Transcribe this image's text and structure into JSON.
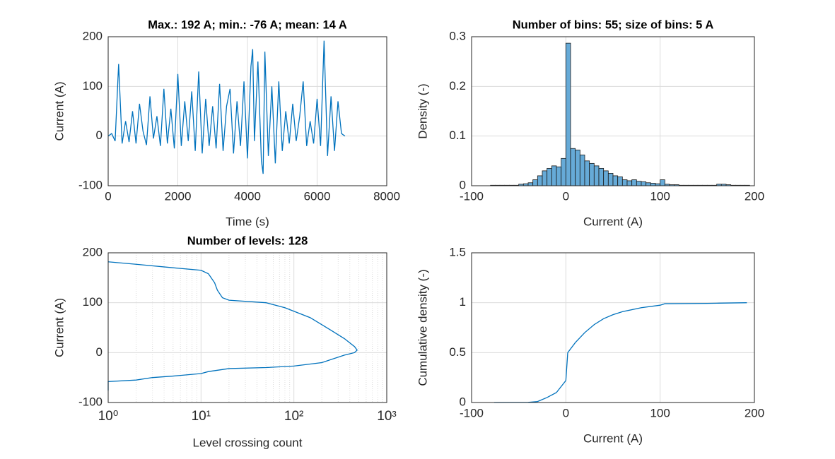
{
  "chart_data": [
    {
      "type": "line",
      "title": "Max.: 192 A; min.: -76 A; mean: 14 A",
      "x_label": "Time (s)",
      "y_label": "Current (A)",
      "color": "#0072BD",
      "grid": true,
      "xlim": [
        0,
        8000
      ],
      "xticks": [
        0,
        2000,
        4000,
        6000,
        8000
      ],
      "ylim": [
        -100,
        200
      ],
      "yticks": [
        -100,
        0,
        100,
        200
      ],
      "x": [
        0,
        100,
        200,
        300,
        400,
        500,
        600,
        700,
        800,
        900,
        1000,
        1100,
        1200,
        1300,
        1400,
        1500,
        1600,
        1700,
        1800,
        1900,
        2000,
        2100,
        2200,
        2300,
        2400,
        2500,
        2600,
        2700,
        2800,
        2900,
        3000,
        3100,
        3200,
        3300,
        3400,
        3500,
        3600,
        3700,
        3800,
        3900,
        4000,
        4100,
        4150,
        4200,
        4300,
        4400,
        4450,
        4500,
        4600,
        4700,
        4800,
        4900,
        5000,
        5100,
        5200,
        5300,
        5400,
        5500,
        5600,
        5700,
        5800,
        5900,
        6000,
        6100,
        6200,
        6300,
        6400,
        6500,
        6600,
        6700,
        6800
      ],
      "values": [
        0,
        5,
        -10,
        145,
        -15,
        30,
        -12,
        50,
        -15,
        65,
        10,
        -18,
        80,
        -5,
        40,
        -20,
        95,
        -15,
        55,
        -25,
        125,
        -20,
        70,
        -10,
        90,
        -30,
        130,
        -35,
        75,
        -20,
        60,
        -25,
        105,
        -30,
        60,
        95,
        -35,
        70,
        -20,
        110,
        -45,
        140,
        175,
        -10,
        150,
        -50,
        -76,
        170,
        -40,
        100,
        -55,
        110,
        -30,
        50,
        -15,
        65,
        -10,
        40,
        110,
        -20,
        30,
        -15,
        75,
        -20,
        192,
        -40,
        80,
        -30,
        70,
        5,
        0
      ]
    },
    {
      "type": "histogram",
      "title": "Number of bins: 55; size of bins: 5 A",
      "x_label": "Current (A)",
      "y_label": "Density (-)",
      "color": "#66aad7",
      "grid": true,
      "xlim": [
        -100,
        200
      ],
      "xticks": [
        -100,
        0,
        100,
        200
      ],
      "ylim": [
        0,
        0.3
      ],
      "yticks": [
        0,
        0.1,
        0.2,
        0.3
      ],
      "bins": [
        -80,
        -75,
        -70,
        -65,
        -60,
        -55,
        -50,
        -45,
        -40,
        -35,
        -30,
        -25,
        -20,
        -15,
        -10,
        -5,
        0,
        5,
        10,
        15,
        20,
        25,
        30,
        35,
        40,
        45,
        50,
        55,
        60,
        65,
        70,
        75,
        80,
        85,
        90,
        95,
        100,
        105,
        110,
        115,
        120,
        125,
        130,
        135,
        140,
        145,
        150,
        155,
        160,
        165,
        170,
        175,
        180,
        185,
        190,
        195
      ],
      "values": [
        0.001,
        0.001,
        0.001,
        0.001,
        0.001,
        0.001,
        0.003,
        0.004,
        0.006,
        0.012,
        0.02,
        0.03,
        0.035,
        0.04,
        0.038,
        0.055,
        0.287,
        0.075,
        0.072,
        0.062,
        0.05,
        0.045,
        0.04,
        0.035,
        0.03,
        0.025,
        0.02,
        0.018,
        0.012,
        0.01,
        0.012,
        0.009,
        0.008,
        0.006,
        0.005,
        0.004,
        0.012,
        0.003,
        0.002,
        0.002,
        0.001,
        0.001,
        0.001,
        0.001,
        0.001,
        0.001,
        0.001,
        0.001,
        0.003,
        0.003,
        0.002,
        0.001,
        0.001,
        0.001,
        0.001
      ]
    },
    {
      "type": "line",
      "title": "Number of levels: 128",
      "x_label": "Level crossing count",
      "y_label": "Current (A)",
      "color": "#0072BD",
      "grid": true,
      "xscale": "log",
      "xlim": [
        1,
        1000
      ],
      "xticks": [
        {
          "value": 1,
          "label": "10⁰"
        },
        {
          "value": 10,
          "label": "10¹"
        },
        {
          "value": 100,
          "label": "10²"
        },
        {
          "value": 1000,
          "label": "10³"
        }
      ],
      "xminorticks": [
        2,
        3,
        4,
        5,
        6,
        7,
        8,
        9,
        20,
        30,
        40,
        50,
        60,
        70,
        80,
        90,
        200,
        300,
        400,
        500,
        600,
        700,
        800,
        900
      ],
      "ylim": [
        -100,
        200
      ],
      "yticks": [
        -100,
        0,
        100,
        200
      ],
      "x": [
        1,
        2,
        5,
        10,
        12,
        14,
        15,
        17,
        20,
        50,
        80,
        150,
        250,
        350,
        450,
        480,
        450,
        350,
        200,
        100,
        50,
        20,
        12,
        10,
        5,
        3,
        2,
        1,
        1
      ],
      "values": [
        182,
        177,
        170,
        165,
        158,
        140,
        125,
        110,
        105,
        100,
        90,
        70,
        45,
        28,
        12,
        5,
        0,
        -5,
        -20,
        -27,
        -30,
        -32,
        -38,
        -42,
        -47,
        -50,
        -55,
        -58,
        -76
      ]
    },
    {
      "type": "line",
      "x_label": "Current (A)",
      "y_label": "Cumulative density (-)",
      "color": "#0072BD",
      "grid": true,
      "xlim": [
        -100,
        200
      ],
      "xticks": [
        -100,
        0,
        100,
        200
      ],
      "ylim": [
        0,
        1.5
      ],
      "yticks": [
        0,
        0.5,
        1,
        1.5
      ],
      "x": [
        -76,
        -40,
        -30,
        -20,
        -10,
        0,
        2,
        10,
        20,
        30,
        40,
        50,
        60,
        80,
        100,
        105,
        150,
        160,
        192
      ],
      "values": [
        0,
        0.002,
        0.01,
        0.05,
        0.1,
        0.22,
        0.5,
        0.6,
        0.7,
        0.78,
        0.84,
        0.88,
        0.91,
        0.95,
        0.975,
        0.99,
        0.993,
        0.995,
        1
      ]
    }
  ]
}
